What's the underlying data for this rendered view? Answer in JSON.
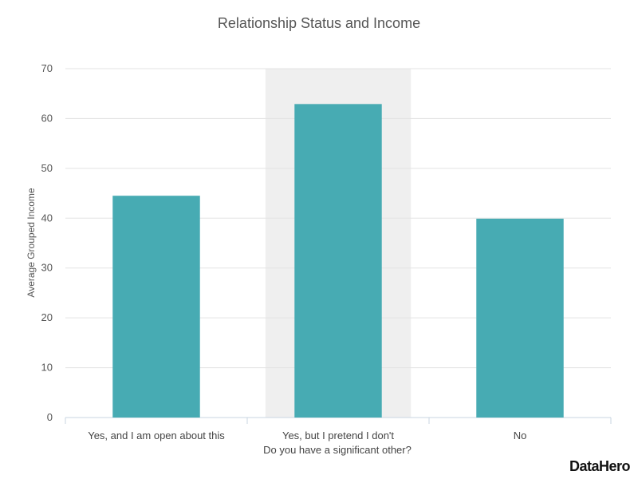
{
  "chart_data": {
    "type": "bar",
    "title": "Relationship Status and Income",
    "xlabel": "Do you have a significant other?",
    "ylabel": "Average Grouped Income",
    "categories": [
      "Yes, and I am open about this",
      "Yes, but I pretend I don't",
      "No"
    ],
    "values": [
      44.5,
      62.9,
      39.9
    ],
    "ylim": [
      0,
      70
    ],
    "yticks": [
      0,
      10,
      20,
      30,
      40,
      50,
      60,
      70
    ],
    "highlighted_category": "Yes, but I pretend I don't",
    "grid": true,
    "legend": "none",
    "colors": {
      "bar": "#47abb3",
      "highlight_band": "#efefef"
    }
  },
  "branding": {
    "logo_text": "DataHero"
  }
}
